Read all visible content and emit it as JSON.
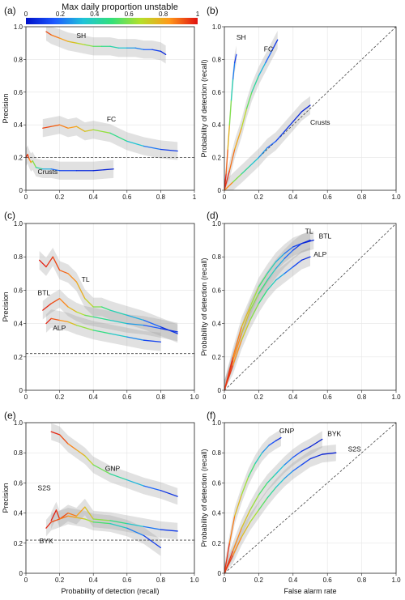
{
  "colorbar": {
    "title": "Max daily proportion unstable",
    "ticks": [
      "0",
      "0.2",
      "0.4",
      "0.6",
      "0.8",
      "1"
    ],
    "colors": [
      "#0010c8",
      "#1e5aff",
      "#1fc3d8",
      "#33e07a",
      "#b4e02b",
      "#ff9a1a",
      "#e01010"
    ]
  },
  "chart_data": [
    {
      "id": "a",
      "panel_label": "(a)",
      "type": "line",
      "xlabel": "",
      "ylabel": "Precision",
      "xlim": [
        0,
        1
      ],
      "ylim": [
        0,
        1
      ],
      "xticks": [
        "0",
        "0.2",
        "0.4",
        "0.6",
        "0.8",
        "1"
      ],
      "yticks": [
        "0",
        "0.2",
        "0.4",
        "0.6",
        "0.8",
        "1.0"
      ],
      "baseline": 0.2,
      "series": [
        {
          "name": "SH",
          "label_at": [
            0.3,
            0.93
          ],
          "x": [
            0.12,
            0.15,
            0.2,
            0.25,
            0.3,
            0.35,
            0.4,
            0.45,
            0.5,
            0.55,
            0.6,
            0.65,
            0.7,
            0.75,
            0.8,
            0.83
          ],
          "y": [
            0.97,
            0.95,
            0.93,
            0.91,
            0.9,
            0.89,
            0.88,
            0.88,
            0.88,
            0.87,
            0.87,
            0.87,
            0.86,
            0.86,
            0.85,
            0.83
          ],
          "c": [
            0.95,
            0.9,
            0.85,
            0.78,
            0.72,
            0.65,
            0.58,
            0.5,
            0.45,
            0.38,
            0.3,
            0.25,
            0.2,
            0.15,
            0.08,
            0.03
          ]
        },
        {
          "name": "FC",
          "label_at": [
            0.48,
            0.42
          ],
          "x": [
            0.1,
            0.15,
            0.2,
            0.25,
            0.3,
            0.35,
            0.4,
            0.5,
            0.6,
            0.7,
            0.8,
            0.9
          ],
          "y": [
            0.38,
            0.39,
            0.4,
            0.38,
            0.39,
            0.36,
            0.37,
            0.35,
            0.3,
            0.27,
            0.25,
            0.24
          ],
          "c": [
            0.95,
            0.92,
            0.88,
            0.85,
            0.8,
            0.75,
            0.7,
            0.55,
            0.4,
            0.28,
            0.15,
            0.05
          ]
        },
        {
          "name": "Crusts",
          "label_at": [
            0.07,
            0.1
          ],
          "x": [
            0.0,
            0.01,
            0.02,
            0.03,
            0.04,
            0.06,
            0.1,
            0.15,
            0.2,
            0.3,
            0.4,
            0.52
          ],
          "y": [
            0.2,
            0.22,
            0.19,
            0.17,
            0.18,
            0.14,
            0.13,
            0.13,
            0.12,
            0.12,
            0.12,
            0.13
          ],
          "c": [
            1.0,
            0.95,
            0.9,
            0.8,
            0.7,
            0.5,
            0.35,
            0.25,
            0.15,
            0.08,
            0.05,
            0.03
          ]
        }
      ]
    },
    {
      "id": "b",
      "panel_label": "(b)",
      "type": "line",
      "xlabel": "",
      "ylabel": "Probability of detection (recall)",
      "xlim": [
        0,
        1
      ],
      "ylim": [
        0,
        1
      ],
      "xticks": [
        "0",
        "0.2",
        "0.4",
        "0.6",
        "0.8",
        "1.0"
      ],
      "yticks": [
        "0",
        "0.2",
        "0.4",
        "0.6",
        "0.8",
        "1.0"
      ],
      "diagonal": true,
      "series": [
        {
          "name": "SH",
          "label_at": [
            0.07,
            0.92
          ],
          "x": [
            0.0,
            0.01,
            0.02,
            0.03,
            0.04,
            0.05,
            0.06,
            0.07
          ],
          "y": [
            0.0,
            0.1,
            0.25,
            0.4,
            0.55,
            0.68,
            0.78,
            0.83
          ],
          "c": [
            1.0,
            0.95,
            0.85,
            0.7,
            0.5,
            0.3,
            0.15,
            0.05
          ]
        },
        {
          "name": "FC",
          "label_at": [
            0.23,
            0.85
          ],
          "x": [
            0.0,
            0.03,
            0.06,
            0.1,
            0.13,
            0.16,
            0.2,
            0.24,
            0.28,
            0.31
          ],
          "y": [
            0.0,
            0.12,
            0.25,
            0.38,
            0.5,
            0.6,
            0.7,
            0.78,
            0.86,
            0.92
          ],
          "c": [
            1.0,
            0.92,
            0.85,
            0.75,
            0.62,
            0.5,
            0.38,
            0.25,
            0.12,
            0.05
          ]
        },
        {
          "name": "Crusts",
          "label_at": [
            0.5,
            0.4
          ],
          "x": [
            0.0,
            0.05,
            0.1,
            0.15,
            0.2,
            0.25,
            0.3,
            0.35,
            0.4,
            0.45,
            0.5
          ],
          "y": [
            0.0,
            0.05,
            0.1,
            0.15,
            0.2,
            0.26,
            0.3,
            0.36,
            0.42,
            0.48,
            0.52
          ],
          "c": [
            1.0,
            0.7,
            0.5,
            0.4,
            0.3,
            0.22,
            0.15,
            0.1,
            0.07,
            0.05,
            0.03
          ]
        }
      ]
    },
    {
      "id": "c",
      "panel_label": "(c)",
      "type": "line",
      "xlabel": "",
      "ylabel": "Precision",
      "xlim": [
        0,
        1
      ],
      "ylim": [
        0,
        1
      ],
      "xticks": [
        "0",
        "0.2",
        "0.4",
        "0.6",
        "0.8",
        "1.0"
      ],
      "yticks": [
        "0",
        "0.2",
        "0.4",
        "0.6",
        "0.8",
        "1.0"
      ],
      "baseline": 0.22,
      "series": [
        {
          "name": "TL",
          "label_at": [
            0.33,
            0.65
          ],
          "x": [
            0.08,
            0.12,
            0.16,
            0.2,
            0.25,
            0.3,
            0.35,
            0.4,
            0.45,
            0.5,
            0.6,
            0.7,
            0.8,
            0.9
          ],
          "y": [
            0.78,
            0.74,
            0.8,
            0.72,
            0.7,
            0.65,
            0.55,
            0.5,
            0.5,
            0.48,
            0.45,
            0.42,
            0.38,
            0.34
          ],
          "c": [
            1.0,
            0.97,
            0.95,
            0.92,
            0.88,
            0.82,
            0.75,
            0.65,
            0.55,
            0.45,
            0.35,
            0.25,
            0.12,
            0.04
          ]
        },
        {
          "name": "BTL",
          "label_at": [
            0.07,
            0.57
          ],
          "x": [
            0.1,
            0.15,
            0.2,
            0.25,
            0.3,
            0.35,
            0.4,
            0.5,
            0.6,
            0.7,
            0.8,
            0.9
          ],
          "y": [
            0.48,
            0.52,
            0.55,
            0.5,
            0.47,
            0.45,
            0.44,
            0.42,
            0.4,
            0.39,
            0.37,
            0.35
          ],
          "c": [
            1.0,
            0.95,
            0.9,
            0.82,
            0.72,
            0.62,
            0.52,
            0.42,
            0.32,
            0.22,
            0.12,
            0.04
          ]
        },
        {
          "name": "ALP",
          "label_at": [
            0.16,
            0.36
          ],
          "x": [
            0.12,
            0.15,
            0.2,
            0.25,
            0.3,
            0.4,
            0.5,
            0.6,
            0.7,
            0.8
          ],
          "y": [
            0.4,
            0.43,
            0.42,
            0.41,
            0.39,
            0.36,
            0.34,
            0.32,
            0.3,
            0.29
          ],
          "c": [
            1.0,
            0.95,
            0.88,
            0.8,
            0.7,
            0.55,
            0.42,
            0.3,
            0.18,
            0.05
          ]
        }
      ]
    },
    {
      "id": "d",
      "panel_label": "(d)",
      "type": "line",
      "xlabel": "",
      "ylabel": "Probability of detection (recall)",
      "xlim": [
        0,
        1
      ],
      "ylim": [
        0,
        1
      ],
      "xticks": [
        "0",
        "0.2",
        "0.4",
        "0.6",
        "0.8",
        "1.0"
      ],
      "yticks": [
        "0",
        "0.2",
        "0.4",
        "0.6",
        "0.8",
        "1.0"
      ],
      "diagonal": true,
      "series": [
        {
          "name": "TL",
          "label_at": [
            0.47,
            0.94
          ],
          "x": [
            0.0,
            0.05,
            0.1,
            0.15,
            0.2,
            0.25,
            0.3,
            0.35,
            0.4,
            0.45,
            0.5
          ],
          "y": [
            0.0,
            0.2,
            0.38,
            0.5,
            0.62,
            0.7,
            0.77,
            0.82,
            0.86,
            0.88,
            0.9
          ],
          "c": [
            1.0,
            0.92,
            0.82,
            0.7,
            0.58,
            0.46,
            0.35,
            0.25,
            0.15,
            0.08,
            0.04
          ]
        },
        {
          "name": "BTL",
          "label_at": [
            0.55,
            0.91
          ],
          "x": [
            0.0,
            0.05,
            0.1,
            0.15,
            0.2,
            0.25,
            0.3,
            0.35,
            0.4,
            0.45,
            0.52
          ],
          "y": [
            0.0,
            0.18,
            0.34,
            0.48,
            0.58,
            0.66,
            0.73,
            0.79,
            0.84,
            0.88,
            0.9
          ],
          "c": [
            1.0,
            0.9,
            0.8,
            0.68,
            0.56,
            0.44,
            0.34,
            0.24,
            0.14,
            0.07,
            0.03
          ]
        },
        {
          "name": "ALP",
          "label_at": [
            0.52,
            0.8
          ],
          "x": [
            0.0,
            0.05,
            0.1,
            0.15,
            0.2,
            0.25,
            0.3,
            0.35,
            0.4,
            0.45,
            0.5
          ],
          "y": [
            0.0,
            0.15,
            0.3,
            0.42,
            0.52,
            0.6,
            0.66,
            0.7,
            0.74,
            0.78,
            0.8
          ],
          "c": [
            1.0,
            0.9,
            0.78,
            0.66,
            0.55,
            0.44,
            0.34,
            0.25,
            0.16,
            0.08,
            0.04
          ]
        }
      ]
    },
    {
      "id": "e",
      "panel_label": "(e)",
      "type": "line",
      "xlabel": "Probability of detection (recall)",
      "ylabel": "Precision",
      "xlim": [
        0,
        1
      ],
      "ylim": [
        0,
        1
      ],
      "xticks": [
        "0",
        "0.2",
        "0.4",
        "0.6",
        "0.8",
        "1.0"
      ],
      "yticks": [
        "0",
        "0.2",
        "0.4",
        "0.6",
        "0.8",
        "1.0"
      ],
      "baseline": 0.22,
      "series": [
        {
          "name": "GNP",
          "label_at": [
            0.47,
            0.68
          ],
          "x": [
            0.15,
            0.2,
            0.25,
            0.3,
            0.35,
            0.4,
            0.5,
            0.6,
            0.7,
            0.8,
            0.9
          ],
          "y": [
            0.94,
            0.92,
            0.86,
            0.82,
            0.78,
            0.72,
            0.66,
            0.62,
            0.58,
            0.55,
            0.51
          ],
          "c": [
            1.0,
            0.95,
            0.9,
            0.82,
            0.75,
            0.65,
            0.5,
            0.38,
            0.25,
            0.12,
            0.04
          ]
        },
        {
          "name": "S2S",
          "label_at": [
            0.07,
            0.55
          ],
          "x": [
            0.15,
            0.18,
            0.2,
            0.25,
            0.3,
            0.35,
            0.4,
            0.5,
            0.6,
            0.7,
            0.8,
            0.9
          ],
          "y": [
            0.35,
            0.42,
            0.36,
            0.4,
            0.38,
            0.44,
            0.36,
            0.35,
            0.33,
            0.31,
            0.29,
            0.28
          ],
          "c": [
            1.0,
            0.97,
            0.95,
            0.9,
            0.85,
            0.78,
            0.68,
            0.55,
            0.42,
            0.28,
            0.15,
            0.05
          ]
        },
        {
          "name": "BYK",
          "label_at": [
            0.08,
            0.2
          ],
          "x": [
            0.12,
            0.15,
            0.2,
            0.25,
            0.3,
            0.35,
            0.4,
            0.5,
            0.6,
            0.7,
            0.8
          ],
          "y": [
            0.3,
            0.34,
            0.36,
            0.38,
            0.37,
            0.36,
            0.34,
            0.33,
            0.3,
            0.25,
            0.17
          ],
          "c": [
            1.0,
            0.95,
            0.9,
            0.85,
            0.8,
            0.7,
            0.6,
            0.45,
            0.3,
            0.15,
            0.05
          ]
        }
      ]
    },
    {
      "id": "f",
      "panel_label": "(f)",
      "type": "line",
      "xlabel": "False alarm rate",
      "ylabel": "Probability of detection (recall)",
      "xlim": [
        0,
        1
      ],
      "ylim": [
        0,
        1
      ],
      "xticks": [
        "0",
        "0.2",
        "0.4",
        "0.6",
        "0.8",
        "1.0"
      ],
      "yticks": [
        "0",
        "0.2",
        "0.4",
        "0.6",
        "0.8",
        "1.0"
      ],
      "diagonal": true,
      "series": [
        {
          "name": "GNP",
          "label_at": [
            0.32,
            0.93
          ],
          "x": [
            0.0,
            0.03,
            0.06,
            0.1,
            0.14,
            0.18,
            0.22,
            0.26,
            0.3,
            0.33
          ],
          "y": [
            0.0,
            0.2,
            0.38,
            0.52,
            0.64,
            0.73,
            0.8,
            0.85,
            0.88,
            0.9
          ],
          "c": [
            1.0,
            0.92,
            0.82,
            0.7,
            0.58,
            0.45,
            0.32,
            0.2,
            0.1,
            0.04
          ]
        },
        {
          "name": "BYK",
          "label_at": [
            0.6,
            0.91
          ],
          "x": [
            0.0,
            0.05,
            0.1,
            0.15,
            0.2,
            0.25,
            0.3,
            0.35,
            0.4,
            0.45,
            0.5,
            0.57
          ],
          "y": [
            0.0,
            0.15,
            0.3,
            0.42,
            0.52,
            0.6,
            0.66,
            0.72,
            0.77,
            0.81,
            0.84,
            0.89
          ],
          "c": [
            1.0,
            0.9,
            0.8,
            0.68,
            0.58,
            0.48,
            0.38,
            0.28,
            0.18,
            0.1,
            0.05,
            0.03
          ]
        },
        {
          "name": "S2S",
          "label_at": [
            0.72,
            0.81
          ],
          "x": [
            0.0,
            0.05,
            0.1,
            0.15,
            0.2,
            0.25,
            0.3,
            0.35,
            0.4,
            0.45,
            0.5,
            0.57,
            0.65
          ],
          "y": [
            0.0,
            0.12,
            0.24,
            0.34,
            0.42,
            0.5,
            0.57,
            0.63,
            0.68,
            0.72,
            0.76,
            0.79,
            0.8
          ],
          "c": [
            1.0,
            0.9,
            0.8,
            0.7,
            0.6,
            0.5,
            0.4,
            0.3,
            0.22,
            0.15,
            0.08,
            0.04,
            0.02
          ]
        }
      ]
    }
  ]
}
